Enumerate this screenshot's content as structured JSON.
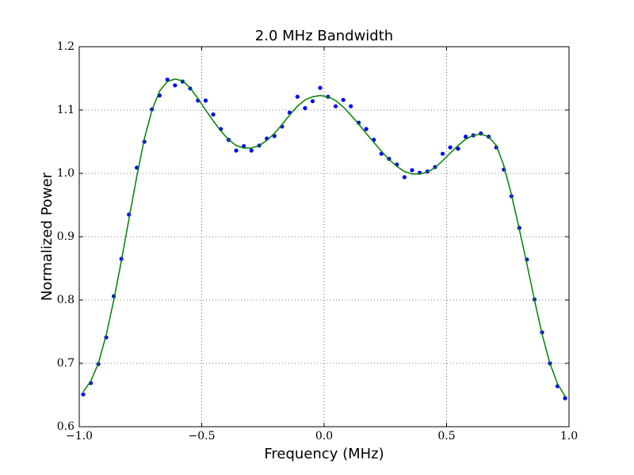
{
  "chart_data": {
    "type": "scatter",
    "title": "2.0 MHz Bandwidth",
    "x_label": "Frequency (MHz)",
    "y_label": "Normalized Power",
    "x": [
      -0.984,
      -0.953,
      -0.922,
      -0.89,
      -0.859,
      -0.828,
      -0.797,
      -0.765,
      -0.734,
      -0.703,
      -0.672,
      -0.64,
      -0.609,
      -0.578,
      -0.547,
      -0.515,
      -0.484,
      -0.453,
      -0.422,
      -0.39,
      -0.359,
      -0.328,
      -0.297,
      -0.265,
      -0.234,
      -0.203,
      -0.172,
      -0.141,
      -0.109,
      -0.078,
      -0.047,
      -0.016,
      0.016,
      0.047,
      0.078,
      0.109,
      0.141,
      0.172,
      0.203,
      0.234,
      0.265,
      0.297,
      0.328,
      0.359,
      0.39,
      0.422,
      0.453,
      0.484,
      0.515,
      0.547,
      0.578,
      0.609,
      0.64,
      0.672,
      0.703,
      0.734,
      0.765,
      0.797,
      0.828,
      0.859,
      0.89,
      0.922,
      0.953,
      0.984
    ],
    "series": [
      {
        "type": "scatter",
        "color": "#0000ff",
        "values": [
          0.651,
          0.669,
          0.699,
          0.741,
          0.806,
          0.865,
          0.935,
          1.009,
          1.05,
          1.101,
          1.123,
          1.148,
          1.139,
          1.145,
          1.134,
          1.115,
          1.115,
          1.093,
          1.07,
          1.053,
          1.036,
          1.043,
          1.036,
          1.044,
          1.055,
          1.059,
          1.074,
          1.096,
          1.121,
          1.103,
          1.114,
          1.135,
          1.121,
          1.106,
          1.116,
          1.106,
          1.08,
          1.07,
          1.053,
          1.031,
          1.023,
          1.014,
          0.994,
          1.005,
          1.001,
          1.003,
          1.01,
          1.031,
          1.041,
          1.039,
          1.058,
          1.06,
          1.063,
          1.058,
          1.041,
          1.006,
          0.964,
          0.914,
          0.864,
          0.801,
          0.749,
          0.7,
          0.664,
          0.645
        ]
      },
      {
        "type": "line",
        "color": "#008000",
        "values": [
          0.655,
          0.672,
          0.7,
          0.745,
          0.8,
          0.862,
          0.928,
          0.995,
          1.055,
          1.1,
          1.13,
          1.145,
          1.149,
          1.146,
          1.135,
          1.118,
          1.1,
          1.083,
          1.067,
          1.053,
          1.044,
          1.04,
          1.04,
          1.044,
          1.052,
          1.063,
          1.077,
          1.092,
          1.106,
          1.116,
          1.121,
          1.123,
          1.121,
          1.115,
          1.105,
          1.092,
          1.078,
          1.063,
          1.049,
          1.035,
          1.022,
          1.011,
          1.003,
          0.999,
          0.999,
          1.002,
          1.009,
          1.02,
          1.032,
          1.044,
          1.054,
          1.06,
          1.062,
          1.058,
          1.044,
          1.012,
          0.966,
          0.912,
          0.857,
          0.8,
          0.746,
          0.7,
          0.668,
          0.648
        ]
      }
    ],
    "xlim": [
      -1,
      1
    ],
    "ylim": [
      0.6,
      1.2
    ],
    "xticks": [
      {
        "value": -1,
        "label": "−1.0"
      },
      {
        "value": -0.5,
        "label": "−0.5"
      },
      {
        "value": 0,
        "label": "0.0"
      },
      0.5,
      {
        "value": 1,
        "label": "1.0"
      }
    ],
    "yticks": [
      0.6,
      0.7,
      0.8,
      0.9,
      {
        "value": 1,
        "label": "1.0"
      },
      1.1,
      1.2
    ],
    "grid": true
  }
}
